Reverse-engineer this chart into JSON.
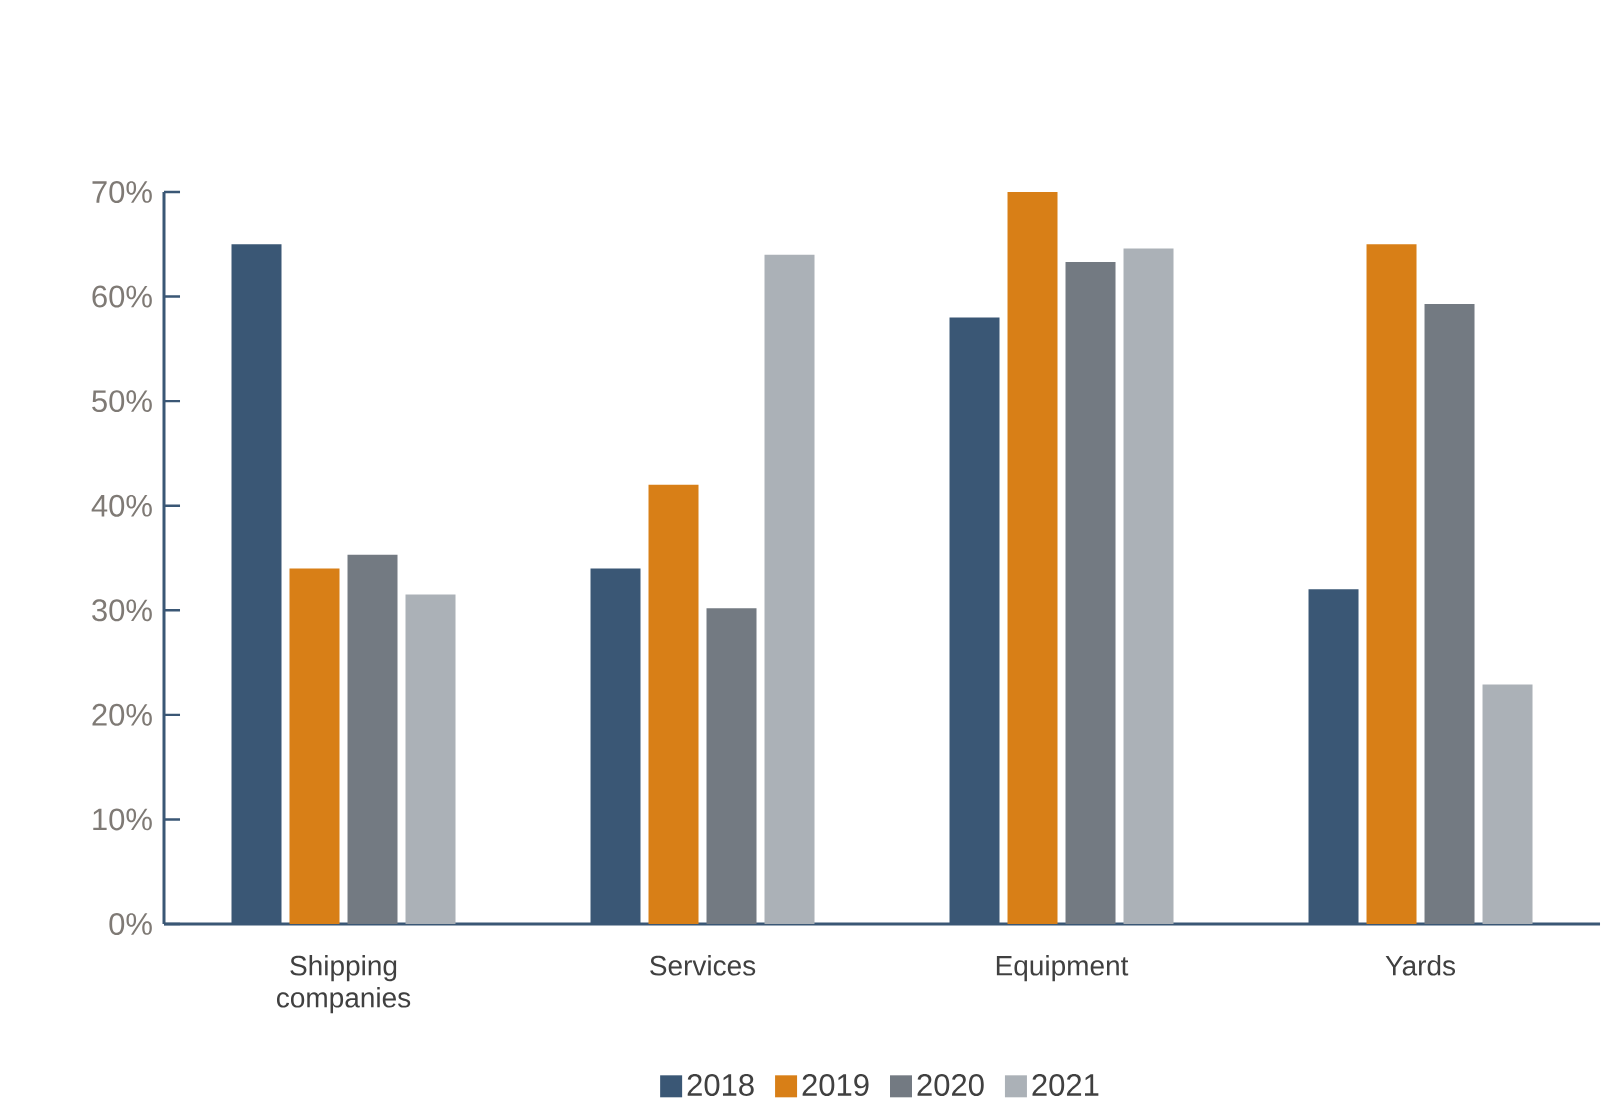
{
  "chart_data": {
    "type": "bar",
    "categories": [
      "Shipping companies",
      "Services",
      "Equipment",
      "Yards"
    ],
    "series": [
      {
        "name": "2018",
        "color": "#3a5775",
        "values": [
          65,
          34,
          58,
          32
        ]
      },
      {
        "name": "2019",
        "color": "#d87f17",
        "values": [
          34,
          42,
          70,
          65
        ]
      },
      {
        "name": "2020",
        "color": "#737a82",
        "values": [
          35.3,
          30.2,
          63.3,
          59.3
        ]
      },
      {
        "name": "2021",
        "color": "#abb1b7",
        "values": [
          31.5,
          64,
          64.6,
          22.9
        ]
      }
    ],
    "ylim": [
      0,
      70
    ],
    "yticks": [
      {
        "value": 0,
        "label": "0%"
      },
      {
        "value": 10,
        "label": "10%"
      },
      {
        "value": 20,
        "label": "20%"
      },
      {
        "value": 30,
        "label": "30%"
      },
      {
        "value": 40,
        "label": "40%"
      },
      {
        "value": 50,
        "label": "50%"
      },
      {
        "value": 60,
        "label": "60%"
      },
      {
        "value": 70,
        "label": "70%"
      }
    ],
    "grid": false,
    "legend": "bottom"
  }
}
